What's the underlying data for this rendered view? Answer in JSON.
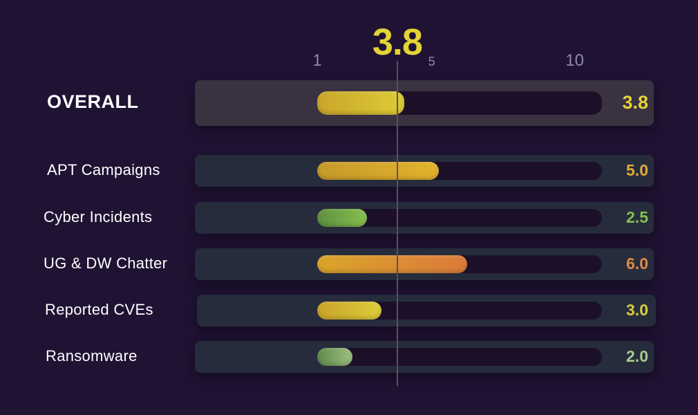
{
  "chart_data": {
    "type": "bar",
    "orientation": "horizontal",
    "axis": {
      "min": 0,
      "max": 10,
      "ticks": [
        {
          "label": "1",
          "value": 1,
          "style": "large"
        },
        {
          "label": "5",
          "value": 5,
          "style": "small"
        },
        {
          "label": "10",
          "value": 10,
          "style": "large"
        }
      ]
    },
    "marker": {
      "value": 3.8,
      "label": "3.8",
      "color": "#e3d336"
    },
    "rows": [
      {
        "label": "OVERALL",
        "value": 3.8,
        "value_label": "3.8",
        "overall": true,
        "fill_from": "#caa52a",
        "fill_to": "#dccc36",
        "value_color": "#e3d336"
      },
      {
        "label": "APT Campaigns",
        "value": 5.0,
        "value_label": "5.0",
        "fill_from": "#c59a2a",
        "fill_to": "#e2b32c",
        "value_color": "#e6a93a"
      },
      {
        "label": "Cyber Incidents",
        "value": 2.5,
        "value_label": "2.5",
        "fill_from": "#5e8f40",
        "fill_to": "#86c04f",
        "value_color": "#86c04f"
      },
      {
        "label": "UG & DW Chatter",
        "value": 6.0,
        "value_label": "6.0",
        "fill_from": "#d9a52a",
        "fill_to": "#dc7a3b",
        "value_color": "#e08a45"
      },
      {
        "label": "Reported CVEs",
        "value": 3.0,
        "value_label": "3.0",
        "fill_from": "#c9a32a",
        "fill_to": "#dccd3a",
        "value_color": "#dccd3a"
      },
      {
        "label": "Ransomware",
        "value": 2.0,
        "value_label": "2.0",
        "fill_from": "#5e8a4a",
        "fill_to": "#9cc080",
        "value_color": "#a9cc8e"
      }
    ]
  }
}
